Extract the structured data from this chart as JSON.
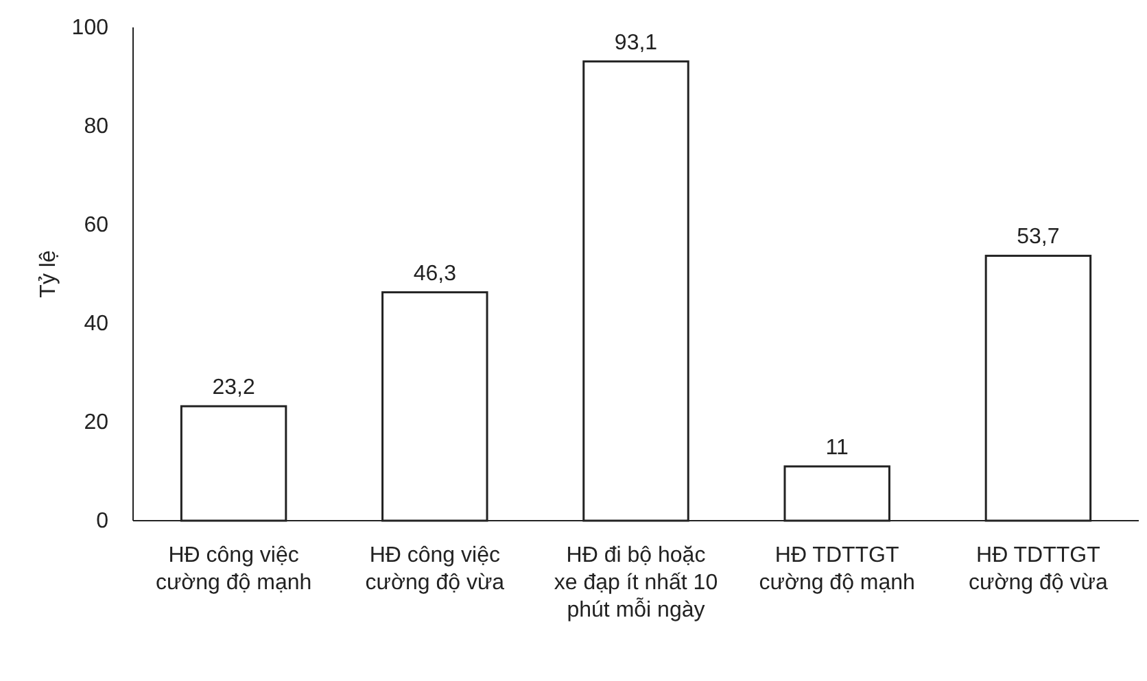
{
  "chart_data": {
    "type": "bar",
    "ylabel": "Tỷ lệ",
    "categories": [
      "HĐ công việc cường độ mạnh",
      "HĐ công việc cường độ vừa",
      "HĐ đi bộ hoặc xe đạp ít nhất 10 phút mỗi ngày",
      "HĐ TDTTGT cường độ mạnh",
      "HĐ TDTTGT cường độ vừa"
    ],
    "values": [
      23.2,
      46.3,
      93.1,
      11,
      53.7
    ],
    "value_labels": [
      "23,2",
      "46,3",
      "93,1",
      "11",
      "53,7"
    ],
    "color": "#ffffff",
    "ylim": [
      0,
      100
    ],
    "yticks": [
      0,
      20,
      40,
      60,
      80,
      100
    ],
    "grid": false
  }
}
